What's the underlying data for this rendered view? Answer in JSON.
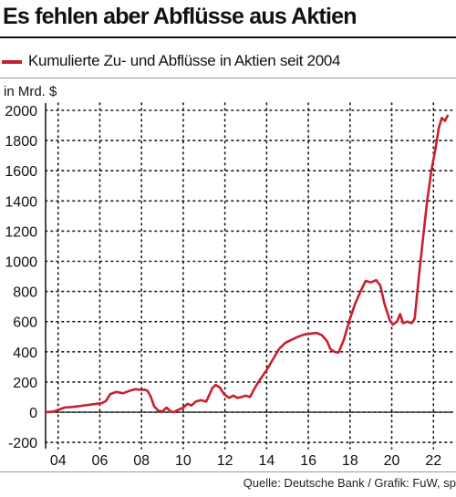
{
  "title": "Es fehlen aber Abflüsse aus Aktien",
  "source": "Quelle: Deutsche Bank / Grafik: FuW, sp",
  "chart_data": {
    "type": "line",
    "ylabel": "in Mrd. $",
    "ylim": [
      -200,
      2050
    ],
    "yticks": [
      -200,
      0,
      200,
      400,
      600,
      800,
      1000,
      1200,
      1400,
      1600,
      1800,
      2000
    ],
    "xlim": [
      2003.4,
      2022.95
    ],
    "xticks": [
      {
        "value": 2004,
        "label": "04"
      },
      {
        "value": 2006,
        "label": "06"
      },
      {
        "value": 2008,
        "label": "08"
      },
      {
        "value": 2010,
        "label": "10"
      },
      {
        "value": 2012,
        "label": "12"
      },
      {
        "value": 2014,
        "label": "14"
      },
      {
        "value": 2016,
        "label": "16"
      },
      {
        "value": 2018,
        "label": "18"
      },
      {
        "value": 2020,
        "label": "20"
      },
      {
        "value": 2022,
        "label": "22"
      }
    ],
    "grid": true,
    "legend_position": "top-left",
    "series": [
      {
        "name": "Kumulierte Zu- und Abflüsse in Aktien seit 2004",
        "color": "#c8202e",
        "points": [
          [
            2003.45,
            0
          ],
          [
            2003.8,
            5
          ],
          [
            2004.0,
            15
          ],
          [
            2004.3,
            30
          ],
          [
            2004.7,
            35
          ],
          [
            2005.0,
            40
          ],
          [
            2005.4,
            48
          ],
          [
            2005.8,
            55
          ],
          [
            2006.1,
            60
          ],
          [
            2006.3,
            75
          ],
          [
            2006.5,
            120
          ],
          [
            2006.8,
            135
          ],
          [
            2007.1,
            125
          ],
          [
            2007.4,
            140
          ],
          [
            2007.7,
            152
          ],
          [
            2008.0,
            148
          ],
          [
            2008.15,
            150
          ],
          [
            2008.3,
            140
          ],
          [
            2008.45,
            100
          ],
          [
            2008.6,
            40
          ],
          [
            2008.8,
            10
          ],
          [
            2009.0,
            5
          ],
          [
            2009.2,
            30
          ],
          [
            2009.4,
            5
          ],
          [
            2009.55,
            0
          ],
          [
            2009.75,
            15
          ],
          [
            2010.0,
            30
          ],
          [
            2010.2,
            55
          ],
          [
            2010.4,
            45
          ],
          [
            2010.6,
            70
          ],
          [
            2010.85,
            80
          ],
          [
            2011.1,
            70
          ],
          [
            2011.4,
            160
          ],
          [
            2011.55,
            180
          ],
          [
            2011.75,
            165
          ],
          [
            2011.95,
            120
          ],
          [
            2012.2,
            95
          ],
          [
            2012.4,
            110
          ],
          [
            2012.6,
            95
          ],
          [
            2012.8,
            100
          ],
          [
            2013.0,
            110
          ],
          [
            2013.2,
            100
          ],
          [
            2013.45,
            165
          ],
          [
            2013.7,
            220
          ],
          [
            2014.0,
            280
          ],
          [
            2014.3,
            350
          ],
          [
            2014.6,
            420
          ],
          [
            2014.9,
            460
          ],
          [
            2015.2,
            480
          ],
          [
            2015.5,
            500
          ],
          [
            2015.8,
            515
          ],
          [
            2016.1,
            520
          ],
          [
            2016.4,
            525
          ],
          [
            2016.65,
            510
          ],
          [
            2016.9,
            470
          ],
          [
            2017.05,
            420
          ],
          [
            2017.25,
            400
          ],
          [
            2017.45,
            395
          ],
          [
            2017.7,
            480
          ],
          [
            2017.95,
            600
          ],
          [
            2018.25,
            720
          ],
          [
            2018.5,
            800
          ],
          [
            2018.75,
            870
          ],
          [
            2019.0,
            860
          ],
          [
            2019.25,
            875
          ],
          [
            2019.45,
            840
          ],
          [
            2019.65,
            720
          ],
          [
            2019.9,
            610
          ],
          [
            2020.05,
            580
          ],
          [
            2020.25,
            600
          ],
          [
            2020.4,
            650
          ],
          [
            2020.55,
            590
          ],
          [
            2020.75,
            600
          ],
          [
            2020.95,
            590
          ],
          [
            2021.1,
            620
          ],
          [
            2021.3,
            900
          ],
          [
            2021.5,
            1150
          ],
          [
            2021.7,
            1400
          ],
          [
            2021.9,
            1600
          ],
          [
            2022.1,
            1750
          ],
          [
            2022.25,
            1880
          ],
          [
            2022.4,
            1950
          ],
          [
            2022.55,
            1930
          ],
          [
            2022.68,
            1965
          ]
        ]
      }
    ]
  }
}
